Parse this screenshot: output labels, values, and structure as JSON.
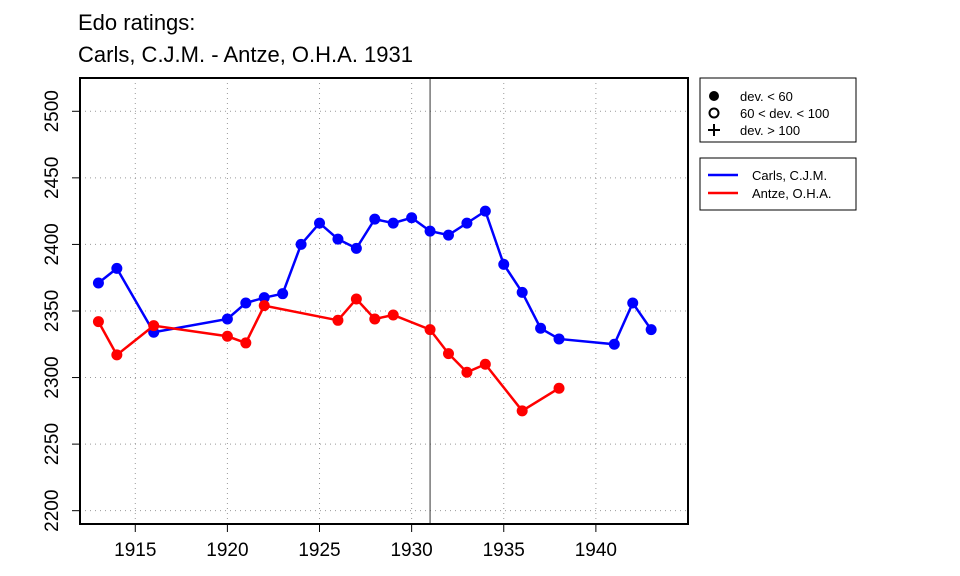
{
  "chart_data": {
    "type": "line",
    "title_line1": "Edo ratings:",
    "title_line2": "Carls, C.J.M. - Antze, O.H.A. 1931",
    "xlabel": "",
    "ylabel": "",
    "xlim": [
      1912,
      1945
    ],
    "ylim": [
      2190,
      2525
    ],
    "x_ticks": [
      "1915",
      "1920",
      "1925",
      "1930",
      "1935",
      "1940"
    ],
    "y_ticks": [
      "2200",
      "2250",
      "2300",
      "2350",
      "2400",
      "2450",
      "2500"
    ],
    "grid": true,
    "reference_line_x": 1931,
    "series": [
      {
        "name": "Carls, C.J.M.",
        "color": "#0000ff",
        "points": [
          {
            "x": 1913,
            "y": 2371
          },
          {
            "x": 1914,
            "y": 2382
          },
          {
            "x": 1916,
            "y": 2334
          },
          {
            "x": 1920,
            "y": 2344
          },
          {
            "x": 1921,
            "y": 2356
          },
          {
            "x": 1922,
            "y": 2360
          },
          {
            "x": 1923,
            "y": 2363
          },
          {
            "x": 1924,
            "y": 2400
          },
          {
            "x": 1925,
            "y": 2416
          },
          {
            "x": 1926,
            "y": 2404
          },
          {
            "x": 1927,
            "y": 2397
          },
          {
            "x": 1928,
            "y": 2419
          },
          {
            "x": 1929,
            "y": 2416
          },
          {
            "x": 1930,
            "y": 2420
          },
          {
            "x": 1931,
            "y": 2410
          },
          {
            "x": 1932,
            "y": 2407
          },
          {
            "x": 1933,
            "y": 2416
          },
          {
            "x": 1934,
            "y": 2425
          },
          {
            "x": 1935,
            "y": 2385
          },
          {
            "x": 1936,
            "y": 2364
          },
          {
            "x": 1937,
            "y": 2337
          },
          {
            "x": 1938,
            "y": 2329
          },
          {
            "x": 1941,
            "y": 2325
          },
          {
            "x": 1942,
            "y": 2356
          },
          {
            "x": 1943,
            "y": 2336
          }
        ]
      },
      {
        "name": "Antze, O.H.A.",
        "color": "#ff0000",
        "points": [
          {
            "x": 1913,
            "y": 2342
          },
          {
            "x": 1914,
            "y": 2317
          },
          {
            "x": 1916,
            "y": 2339
          },
          {
            "x": 1920,
            "y": 2331
          },
          {
            "x": 1921,
            "y": 2326
          },
          {
            "x": 1922,
            "y": 2354
          },
          {
            "x": 1926,
            "y": 2343
          },
          {
            "x": 1927,
            "y": 2359
          },
          {
            "x": 1928,
            "y": 2344
          },
          {
            "x": 1929,
            "y": 2347
          },
          {
            "x": 1931,
            "y": 2336
          },
          {
            "x": 1932,
            "y": 2318
          },
          {
            "x": 1933,
            "y": 2304
          },
          {
            "x": 1934,
            "y": 2310
          },
          {
            "x": 1936,
            "y": 2275
          },
          {
            "x": 1938,
            "y": 2292
          }
        ]
      }
    ],
    "symbol_legend": [
      {
        "symbol": "filled-circle",
        "label": "dev. < 60"
      },
      {
        "symbol": "open-circle",
        "label": "60 < dev. < 100"
      },
      {
        "symbol": "plus",
        "label": "dev. > 100"
      }
    ]
  }
}
